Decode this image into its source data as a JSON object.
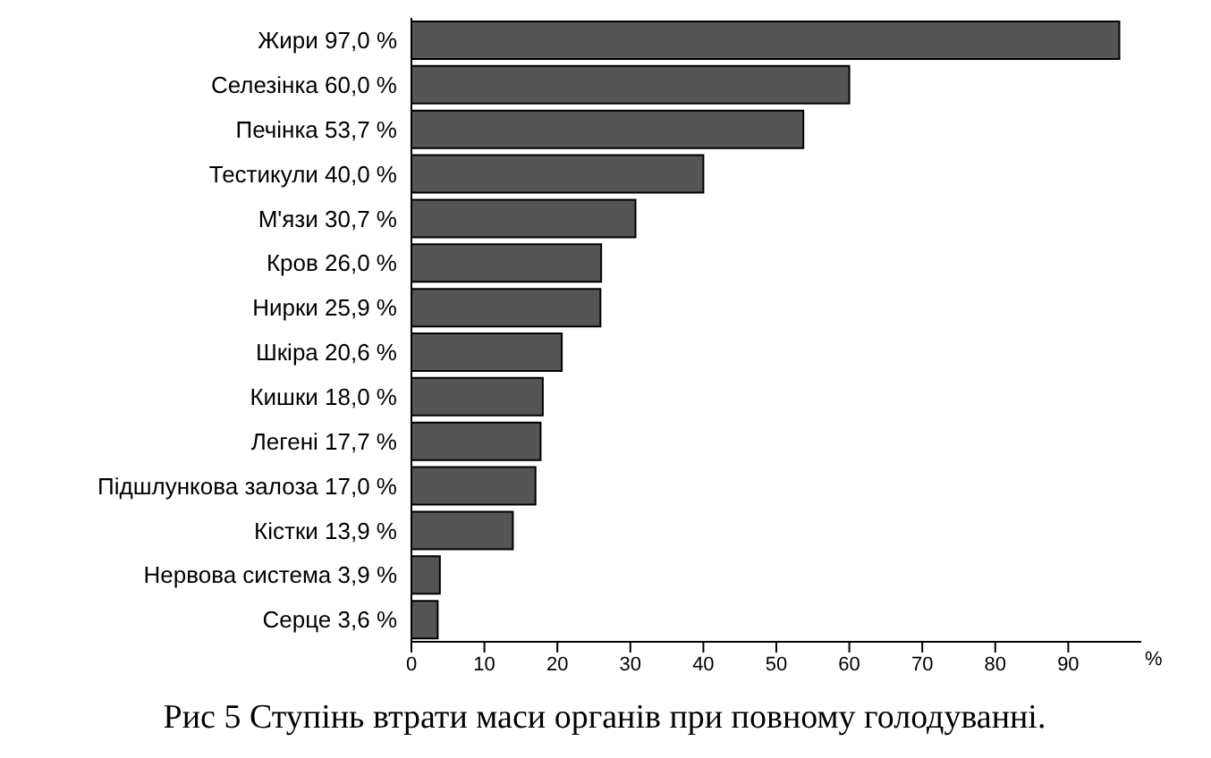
{
  "chart_data": {
    "type": "bar",
    "orientation": "horizontal",
    "title": "Рис 5 Ступінь втрати маси органів при повному голодуванні.",
    "xlabel": "%",
    "categories": [
      "Жири 97,0 %",
      "Селезінка 60,0 %",
      "Печінка 53,7 %",
      "Тестикули 40,0 %",
      "М'язи 30,7 %",
      "Кров 26,0 %",
      "Нирки 25,9 %",
      "Шкіра 20,6 %",
      "Кишки 18,0 %",
      "Легені 17,7 %",
      "Підшлункова залоза 17,0 %",
      "Кістки 13,9 %",
      "Нервова система 3,9 %",
      "Серце 3,6 %"
    ],
    "values": [
      97.0,
      60.0,
      53.7,
      40.0,
      30.7,
      26.0,
      25.9,
      20.6,
      18.0,
      17.7,
      17.0,
      13.9,
      3.9,
      3.6
    ],
    "color": "#555555",
    "xlim": [
      0,
      100
    ],
    "xticks": [
      0,
      10,
      20,
      30,
      40,
      50,
      60,
      70,
      80,
      90
    ]
  }
}
